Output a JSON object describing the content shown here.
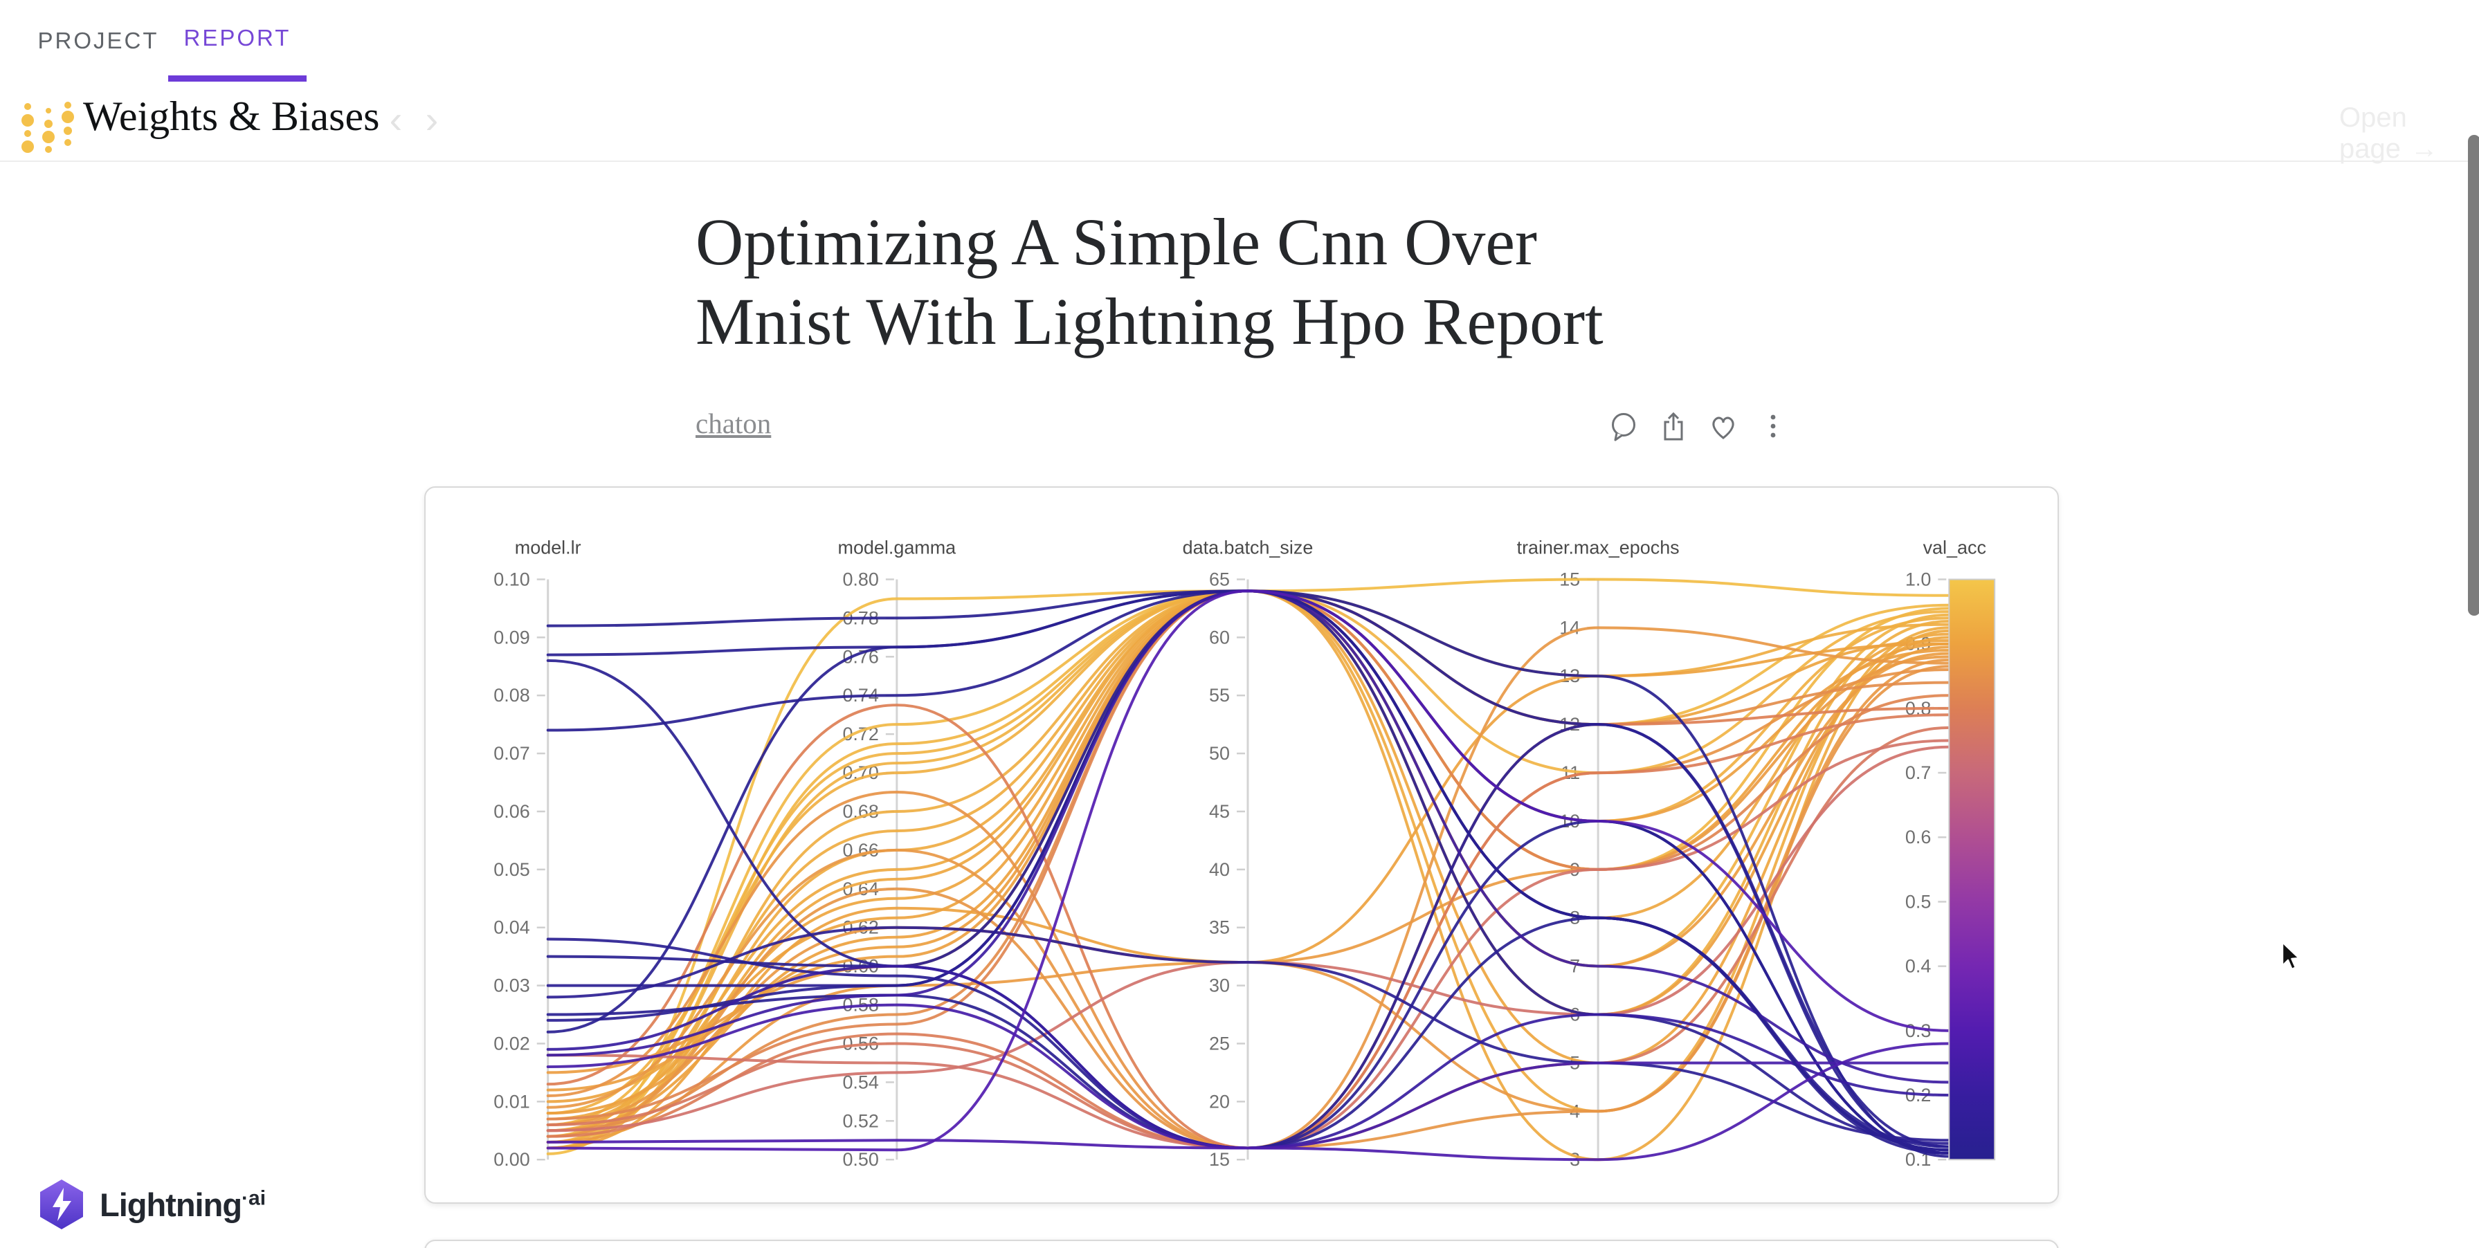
{
  "tabs": {
    "project": {
      "label": "PROJECT"
    },
    "report": {
      "label": "REPORT"
    }
  },
  "header": {
    "brand": "Weights & Biases",
    "nav_prev": "‹",
    "nav_next": "›",
    "open_page_label": "Open page",
    "open_page_arrow": "→"
  },
  "article": {
    "title_lines": [
      "Optimizing A Simple Cnn Over",
      "Mnist With Lightning Hpo Report"
    ],
    "author": "chaton"
  },
  "footer": {
    "brand": "Lightning",
    "suffix": "·ai"
  },
  "colors": {
    "accent_purple": "#7647d6",
    "wandb_gold": "#f4c14b",
    "scrollbar": "#7c7c7c",
    "axis_line": "#d4d4d4",
    "tick_text": "#707070"
  },
  "chart_data": {
    "type": "parallel-coordinates",
    "columns": [
      "model.lr",
      "model.gamma",
      "data.batch_size",
      "trainer.max_epochs",
      "val_acc"
    ],
    "color_by": "val_acc",
    "legend_position": "right-colorbar",
    "grid": false,
    "axes": [
      {
        "label": "model.lr",
        "min": 0.0,
        "max": 0.1,
        "ticks": [
          "0.10",
          "0.09",
          "0.08",
          "0.07",
          "0.06",
          "0.05",
          "0.04",
          "0.03",
          "0.02",
          "0.01",
          "0.00"
        ]
      },
      {
        "label": "model.gamma",
        "min": 0.5,
        "max": 0.8,
        "ticks": [
          "0.80",
          "0.78",
          "0.76",
          "0.74",
          "0.72",
          "0.70",
          "0.68",
          "0.66",
          "0.64",
          "0.62",
          "0.60",
          "0.58",
          "0.56",
          "0.54",
          "0.52",
          "0.50"
        ]
      },
      {
        "label": "data.batch_size",
        "min": 15,
        "max": 65,
        "ticks": [
          "65",
          "60",
          "55",
          "50",
          "45",
          "40",
          "35",
          "30",
          "25",
          "20",
          "15"
        ]
      },
      {
        "label": "trainer.max_epochs",
        "min": 3,
        "max": 15,
        "ticks": [
          "15",
          "14",
          "13",
          "12",
          "11",
          "10",
          "9",
          "8",
          "7",
          "6",
          "5",
          "4",
          "3"
        ]
      },
      {
        "label": "val_acc",
        "min": 0.1,
        "max": 1.0,
        "ticks": [
          "1.0",
          "0.9",
          "0.8",
          "0.7",
          "0.6",
          "0.5",
          "0.4",
          "0.3",
          "0.2",
          "0.1"
        ]
      }
    ],
    "colormap_stops": [
      [
        0.1,
        "#27208f"
      ],
      [
        0.2,
        "#371d9f"
      ],
      [
        0.3,
        "#531cb0"
      ],
      [
        0.4,
        "#7527b2"
      ],
      [
        0.5,
        "#9339a6"
      ],
      [
        0.6,
        "#b04f92"
      ],
      [
        0.7,
        "#c8697a"
      ],
      [
        0.8,
        "#dd7f55"
      ],
      [
        0.9,
        "#eda23f"
      ],
      [
        1.0,
        "#f4c64a"
      ]
    ],
    "runs": [
      [
        0.001,
        0.79,
        64,
        15,
        0.975
      ],
      [
        0.004,
        0.725,
        64,
        12,
        0.96
      ],
      [
        0.002,
        0.715,
        64,
        9,
        0.955
      ],
      [
        0.006,
        0.71,
        64,
        11,
        0.95
      ],
      [
        0.003,
        0.705,
        64,
        7,
        0.945
      ],
      [
        0.008,
        0.7,
        64,
        10,
        0.94
      ],
      [
        0.002,
        0.68,
        64,
        6,
        0.935
      ],
      [
        0.005,
        0.67,
        64,
        13,
        0.93
      ],
      [
        0.003,
        0.66,
        64,
        4,
        0.925
      ],
      [
        0.006,
        0.65,
        64,
        3,
        0.92
      ],
      [
        0.004,
        0.645,
        64,
        8,
        0.915
      ],
      [
        0.007,
        0.635,
        64,
        5,
        0.91
      ],
      [
        0.01,
        0.625,
        64,
        12,
        0.905
      ],
      [
        0.005,
        0.615,
        64,
        9,
        0.9
      ],
      [
        0.008,
        0.61,
        64,
        6,
        0.895
      ],
      [
        0.012,
        0.605,
        64,
        10,
        0.89
      ],
      [
        0.015,
        0.6,
        64,
        7,
        0.885
      ],
      [
        0.003,
        0.59,
        32,
        9,
        0.88
      ],
      [
        0.006,
        0.62,
        32,
        4,
        0.875
      ],
      [
        0.002,
        0.63,
        32,
        13,
        0.9
      ],
      [
        0.009,
        0.66,
        16,
        14,
        0.87
      ],
      [
        0.004,
        0.64,
        16,
        4,
        0.865
      ],
      [
        0.011,
        0.69,
        16,
        11,
        0.86
      ],
      [
        0.005,
        0.575,
        64,
        12,
        0.84
      ],
      [
        0.007,
        0.57,
        64,
        9,
        0.82
      ],
      [
        0.013,
        0.735,
        16,
        12,
        0.8
      ],
      [
        0.004,
        0.565,
        16,
        11,
        0.79
      ],
      [
        0.006,
        0.56,
        16,
        5,
        0.77
      ],
      [
        0.018,
        0.55,
        16,
        9,
        0.75
      ],
      [
        0.005,
        0.545,
        32,
        6,
        0.74
      ],
      [
        0.092,
        0.78,
        64,
        13,
        0.105
      ],
      [
        0.087,
        0.765,
        64,
        12,
        0.11
      ],
      [
        0.086,
        0.6,
        16,
        8,
        0.115
      ],
      [
        0.074,
        0.74,
        64,
        10,
        0.11
      ],
      [
        0.038,
        0.595,
        16,
        12,
        0.12
      ],
      [
        0.035,
        0.6,
        64,
        8,
        0.115
      ],
      [
        0.03,
        0.59,
        64,
        6,
        0.125
      ],
      [
        0.028,
        0.62,
        32,
        5,
        0.13
      ],
      [
        0.025,
        0.585,
        16,
        10,
        0.11
      ],
      [
        0.024,
        0.59,
        64,
        8,
        0.12
      ],
      [
        0.019,
        0.6,
        16,
        6,
        0.2
      ],
      [
        0.018,
        0.585,
        64,
        7,
        0.22
      ],
      [
        0.016,
        0.58,
        16,
        5,
        0.25
      ],
      [
        0.022,
        0.765,
        64,
        8,
        0.11
      ],
      [
        0.003,
        0.51,
        16,
        3,
        0.28
      ],
      [
        0.002,
        0.505,
        64,
        10,
        0.3
      ]
    ]
  }
}
